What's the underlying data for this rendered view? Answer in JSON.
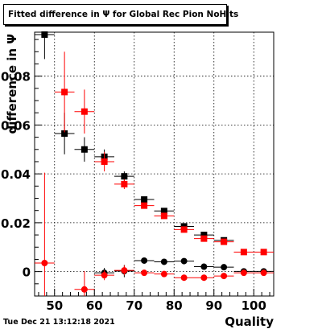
{
  "title": "Fitted difference in Ψ for Global Rec Pion NoHits",
  "timestamp": "Tue Dec 21 13:12:18 2021",
  "chart_data": {
    "type": "scatter",
    "title": "Fitted difference in Ψ for Global Rec Pion NoHits",
    "xlabel": "Quality",
    "ylabel": "difference in Ψ",
    "xlim": [
      45,
      105
    ],
    "ylim": [
      -0.01,
      0.098
    ],
    "xticks": [
      50,
      60,
      70,
      80,
      90,
      100
    ],
    "yticks": [
      0,
      0.02,
      0.04,
      0.06,
      0.08
    ],
    "ytick_labels": [
      "0",
      "0.02",
      "0.04",
      "0.06",
      "0.08"
    ],
    "grid": true,
    "series": [
      {
        "marker": "square",
        "color": "#000000",
        "points": [
          {
            "x": 47.5,
            "y": 0.097,
            "xerr": 2.5,
            "yerr": 0.01
          },
          {
            "x": 52.5,
            "y": 0.0565,
            "xerr": 2.5,
            "yerr": 0.0085
          },
          {
            "x": 57.5,
            "y": 0.05,
            "xerr": 2.5,
            "yerr": 0.005
          },
          {
            "x": 62.5,
            "y": 0.047,
            "xerr": 2.5,
            "yerr": 0.003
          },
          {
            "x": 67.5,
            "y": 0.039,
            "xerr": 2.5,
            "yerr": 0.002
          },
          {
            "x": 72.5,
            "y": 0.0295,
            "xerr": 2.5,
            "yerr": 0.001
          },
          {
            "x": 77.5,
            "y": 0.0248,
            "xerr": 2.5,
            "yerr": 0.001
          },
          {
            "x": 82.5,
            "y": 0.0185,
            "xerr": 2.5,
            "yerr": 0.001
          },
          {
            "x": 87.5,
            "y": 0.015,
            "xerr": 2.5,
            "yerr": 0.001
          },
          {
            "x": 92.5,
            "y": 0.0128,
            "xerr": 2.5,
            "yerr": 0.001
          }
        ]
      },
      {
        "marker": "square",
        "color": "#ff0000",
        "points": [
          {
            "x": 52.5,
            "y": 0.0735,
            "xerr": 2.5,
            "yerr": 0.0165
          },
          {
            "x": 57.5,
            "y": 0.0655,
            "xerr": 2.5,
            "yerr": 0.009
          },
          {
            "x": 62.5,
            "y": 0.045,
            "xerr": 2.5,
            "yerr": 0.004
          },
          {
            "x": 67.5,
            "y": 0.0358,
            "xerr": 2.5,
            "yerr": 0.002
          },
          {
            "x": 72.5,
            "y": 0.027,
            "xerr": 2.5,
            "yerr": 0.001
          },
          {
            "x": 77.5,
            "y": 0.0228,
            "xerr": 2.5,
            "yerr": 0.001
          },
          {
            "x": 82.5,
            "y": 0.0172,
            "xerr": 2.5,
            "yerr": 0.001
          },
          {
            "x": 87.5,
            "y": 0.0135,
            "xerr": 2.5,
            "yerr": 0.001
          },
          {
            "x": 92.5,
            "y": 0.0122,
            "xerr": 2.5,
            "yerr": 0.001
          },
          {
            "x": 97.5,
            "y": 0.008,
            "xerr": 2.5,
            "yerr": 0.001
          },
          {
            "x": 102.5,
            "y": 0.008,
            "xerr": 2.5,
            "yerr": 0.001
          }
        ]
      },
      {
        "marker": "circle",
        "color": "#000000",
        "points": [
          {
            "x": 62.5,
            "y": -0.0005,
            "xerr": 2.5,
            "yerr": 0.002
          },
          {
            "x": 67.5,
            "y": 0.0002,
            "xerr": 2.5,
            "yerr": 0.0025
          },
          {
            "x": 72.5,
            "y": 0.0045,
            "xerr": 2.5,
            "yerr": 0.001
          },
          {
            "x": 77.5,
            "y": 0.004,
            "xerr": 2.5,
            "yerr": 0.001
          },
          {
            "x": 82.5,
            "y": 0.0043,
            "xerr": 2.5,
            "yerr": 0.001
          },
          {
            "x": 87.5,
            "y": 0.002,
            "xerr": 2.5,
            "yerr": 0.001
          },
          {
            "x": 92.5,
            "y": 0.0018,
            "xerr": 2.5,
            "yerr": 0.001
          },
          {
            "x": 97.5,
            "y": 0.0001,
            "xerr": 2.5,
            "yerr": 0.001
          },
          {
            "x": 102.5,
            "y": 0.0001,
            "xerr": 2.5,
            "yerr": 0.001
          }
        ]
      },
      {
        "marker": "circle",
        "color": "#ff0000",
        "points": [
          {
            "x": 47.5,
            "y": 0.0035,
            "xerr": 2.5,
            "yerr": 0.037
          },
          {
            "x": 57.5,
            "y": -0.0073,
            "xerr": 2.5,
            "yerr": 0.0075
          },
          {
            "x": 62.5,
            "y": -0.0015,
            "xerr": 2.5,
            "yerr": 0.002
          },
          {
            "x": 67.5,
            "y": 0.0005,
            "xerr": 2.5,
            "yerr": 0.002
          },
          {
            "x": 72.5,
            "y": -0.0005,
            "xerr": 2.5,
            "yerr": 0.001
          },
          {
            "x": 77.5,
            "y": -0.001,
            "xerr": 2.5,
            "yerr": 0.001
          },
          {
            "x": 82.5,
            "y": -0.0025,
            "xerr": 2.5,
            "yerr": 0.001
          },
          {
            "x": 87.5,
            "y": -0.0025,
            "xerr": 2.5,
            "yerr": 0.001
          },
          {
            "x": 92.5,
            "y": -0.0018,
            "xerr": 2.5,
            "yerr": 0.001
          },
          {
            "x": 97.5,
            "y": -0.0005,
            "xerr": 2.5,
            "yerr": 0.001
          },
          {
            "x": 102.5,
            "y": -0.0005,
            "xerr": 2.5,
            "yerr": 0.001
          }
        ]
      }
    ]
  }
}
